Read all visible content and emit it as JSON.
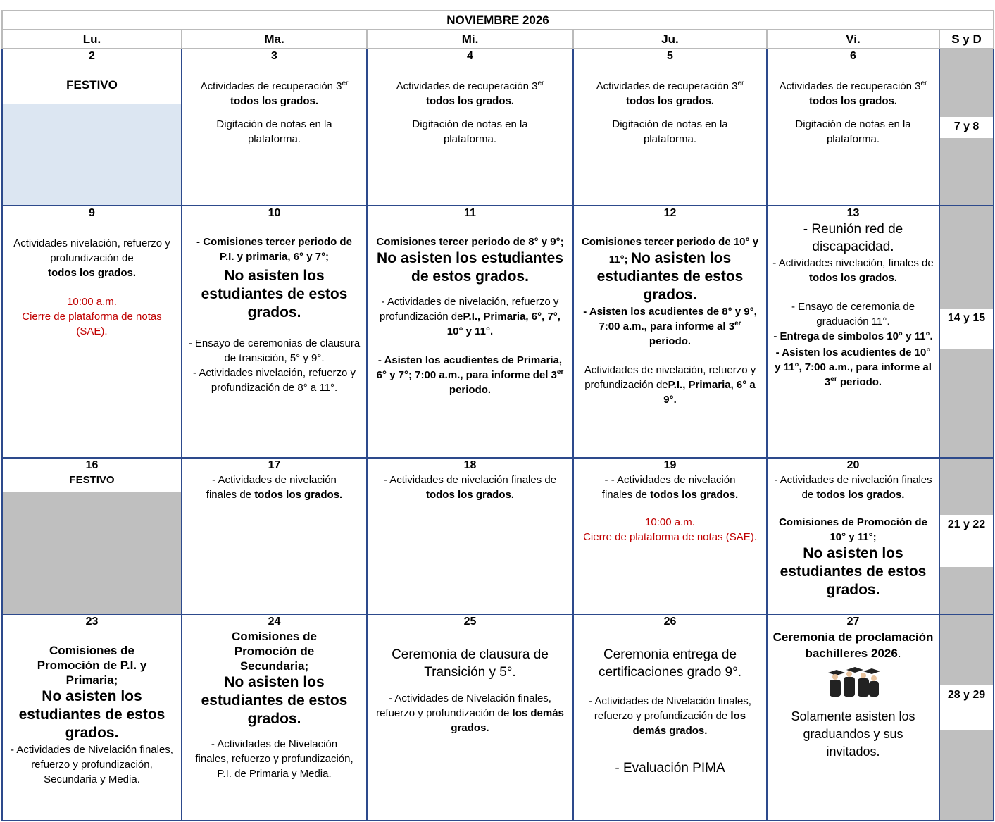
{
  "header": {
    "month": "NOVIEMBRE 2026"
  },
  "weekdays": [
    "Lu.",
    "Ma.",
    "Mi.",
    "Ju.",
    "Vi.",
    "S y D"
  ],
  "weeks": [
    {
      "days": [
        {
          "date": "2",
          "text": [
            "FESTIVO"
          ]
        },
        {
          "date": "3",
          "text": [
            "Actividades de recuperación 3",
            "er",
            "todos los grados.",
            "Digitación de notas en la plataforma."
          ]
        },
        {
          "date": "4",
          "text": [
            "Actividades de recuperación 3",
            "er",
            "todos los grados.",
            "Digitación de notas en la plataforma."
          ]
        },
        {
          "date": "5",
          "text": [
            "Actividades de recuperación 3",
            "er",
            "todos los grados.",
            "Digitación de notas en la plataforma."
          ]
        },
        {
          "date": "6",
          "text": [
            "Actividades de recuperación 3",
            "er",
            "todos los grados.",
            "Digitación de notas en la plataforma."
          ]
        }
      ],
      "weekend": "7 y 8"
    },
    {
      "days": [
        {
          "date": "9",
          "text": [
            "Actividades nivelación, refuerzo y profundización de",
            "todos los grados.",
            "10:00 a.m.",
            "Cierre de plataforma de notas (SAE)."
          ]
        },
        {
          "date": "10",
          "text": [
            "- Comisiones tercer periodo de P.I.  y primaria, 6° y 7°;",
            "No asisten los estudiantes de estos grados.",
            "- Ensayo de ceremonias de clausura de transición, 5° y 9°.",
            "- Actividades nivelación, refuerzo y profundización de 8° a 11°."
          ]
        },
        {
          "date": "11",
          "text": [
            "Comisiones tercer periodo de 8° y 9°;",
            "No asisten los estudiantes de estos grados.",
            "- Actividades de nivelación, refuerzo y profundización de",
            "P.I., Primaria, 6°, 7°, 10° y 11°.",
            "- Asisten los acudientes de Primaria, 6° y 7°;  7:00 a.m., para informe del 3",
            "er",
            "periodo."
          ]
        },
        {
          "date": "12",
          "text": [
            "Comisiones tercer periodo de 10° y 11°;",
            "No asisten los estudiantes de estos grados.",
            "- Asisten los acudientes de 8° y 9°, 7:00 a.m., para informe al 3",
            "er",
            "periodo.",
            "Actividades de nivelación, refuerzo y profundización de",
            "P.I., Primaria, 6° a 9°."
          ]
        },
        {
          "date": "13",
          "text": [
            "- Reunión red de discapacidad.",
            "- Actividades nivelación, finales de",
            "todos los grados.",
            "- Ensayo de ceremonia de graduación 11°.",
            "- Entrega de símbolos 10° y 11°.",
            "- Asisten los acudientes de 10° y 11°, 7:00 a.m., para informe al 3",
            "er",
            "periodo."
          ]
        }
      ],
      "weekend": "14  y 15"
    },
    {
      "days": [
        {
          "date": "16",
          "text": [
            "FESTIVO"
          ]
        },
        {
          "date": "17",
          "text": [
            "- Actividades de nivelación finales de",
            "todos los grados."
          ]
        },
        {
          "date": "18",
          "text": [
            "- Actividades de nivelación finales de",
            "todos los grados."
          ]
        },
        {
          "date": "19",
          "text": [
            "- - Actividades de nivelación finales de",
            "todos los grados.",
            "10:00 a.m.",
            "Cierre de plataforma de notas (SAE)."
          ]
        },
        {
          "date": "20",
          "text": [
            "- Actividades de nivelación finales de",
            "todos los grados.",
            "Comisiones de Promoción de 10° y 11°;",
            "No asisten los estudiantes de estos grados."
          ]
        }
      ],
      "weekend": "21 y 22"
    },
    {
      "days": [
        {
          "date": "23",
          "text": [
            "Comisiones de Promoción de P.I. y Primaria;",
            "No asisten los estudiantes de estos grados.",
            "- Actividades de Nivelación finales, refuerzo y profundización, Secundaria y Media."
          ]
        },
        {
          "date": "24",
          "text": [
            "Comisiones de Promoción de Secundaria;",
            "No asisten los estudiantes de estos grados.",
            "- Actividades de Nivelación finales, refuerzo y profundización, P.I. de Primaria y Media."
          ]
        },
        {
          "date": "25",
          "text": [
            "Ceremonia de clausura de Transición y 5°.",
            "- Actividades de Nivelación finales, refuerzo y profundización de",
            "los demás grados."
          ]
        },
        {
          "date": "26",
          "text": [
            "Ceremonia entrega de certificaciones grado 9°.",
            "- Actividades de Nivelación finales, refuerzo y profundización de",
            "los demás grados.",
            "- Evaluación PIMA"
          ]
        },
        {
          "date": "27",
          "text": [
            "Ceremonia de proclamación bachilleres 2026",
            ".",
            "Solamente asisten los graduandos y sus invitados."
          ]
        }
      ],
      "weekend": "28  y 29"
    }
  ]
}
